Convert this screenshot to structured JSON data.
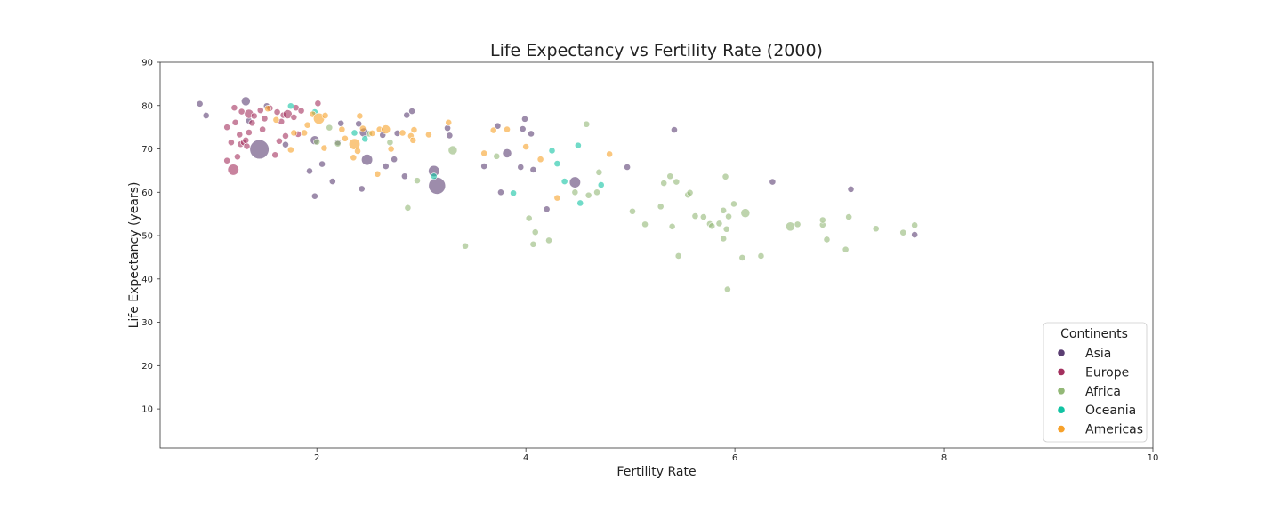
{
  "chart_data": {
    "type": "scatter",
    "title": "Life Expectancy vs Fertility Rate (2000)",
    "xlabel": "Fertility Rate",
    "ylabel": "Life Expectancy (years)",
    "xlim": [
      0.5,
      10
    ],
    "ylim": [
      1,
      90
    ],
    "xticks": [
      2,
      4,
      6,
      8,
      10
    ],
    "yticks": [
      10,
      20,
      30,
      40,
      50,
      60,
      70,
      80,
      90
    ],
    "grid": false,
    "legend": {
      "title": "Continents",
      "position": "bottom-right",
      "entries": [
        "Asia",
        "Europe",
        "Africa",
        "Oceania",
        "Americas"
      ]
    },
    "colors": {
      "Asia": "#5b3f73",
      "Europe": "#a3305e",
      "Africa": "#93b877",
      "Oceania": "#12c3a3",
      "Americas": "#f7a12a"
    },
    "series": [
      {
        "name": "Asia",
        "points": [
          {
            "x": 0.88,
            "y": 80.4,
            "s": 1
          },
          {
            "x": 0.94,
            "y": 77.7,
            "s": 1
          },
          {
            "x": 1.32,
            "y": 81.0,
            "s": 2
          },
          {
            "x": 1.35,
            "y": 76.5,
            "s": 1
          },
          {
            "x": 1.45,
            "y": 69.9,
            "s": 9
          },
          {
            "x": 1.52,
            "y": 79.9,
            "s": 1
          },
          {
            "x": 1.7,
            "y": 71.0,
            "s": 1
          },
          {
            "x": 1.93,
            "y": 64.9,
            "s": 1
          },
          {
            "x": 1.98,
            "y": 59.1,
            "s": 1
          },
          {
            "x": 1.98,
            "y": 72.0,
            "s": 2
          },
          {
            "x": 2.05,
            "y": 66.5,
            "s": 1
          },
          {
            "x": 2.15,
            "y": 62.5,
            "s": 1
          },
          {
            "x": 2.2,
            "y": 71.5,
            "s": 1
          },
          {
            "x": 2.23,
            "y": 75.9,
            "s": 1
          },
          {
            "x": 2.4,
            "y": 75.8,
            "s": 1
          },
          {
            "x": 2.43,
            "y": 60.8,
            "s": 1
          },
          {
            "x": 2.45,
            "y": 73.8,
            "s": 2
          },
          {
            "x": 2.48,
            "y": 67.5,
            "s": 3
          },
          {
            "x": 2.63,
            "y": 73.2,
            "s": 1
          },
          {
            "x": 2.66,
            "y": 66.0,
            "s": 1
          },
          {
            "x": 2.74,
            "y": 67.6,
            "s": 1
          },
          {
            "x": 2.77,
            "y": 73.6,
            "s": 1
          },
          {
            "x": 2.84,
            "y": 63.7,
            "s": 1
          },
          {
            "x": 2.86,
            "y": 77.8,
            "s": 1
          },
          {
            "x": 2.91,
            "y": 78.7,
            "s": 1
          },
          {
            "x": 3.12,
            "y": 64.9,
            "s": 3
          },
          {
            "x": 3.15,
            "y": 61.5,
            "s": 7
          },
          {
            "x": 3.25,
            "y": 74.8,
            "s": 1
          },
          {
            "x": 3.27,
            "y": 73.1,
            "s": 1
          },
          {
            "x": 3.6,
            "y": 66.0,
            "s": 1
          },
          {
            "x": 3.73,
            "y": 75.3,
            "s": 1
          },
          {
            "x": 3.76,
            "y": 60.0,
            "s": 1
          },
          {
            "x": 3.82,
            "y": 69.0,
            "s": 2
          },
          {
            "x": 3.95,
            "y": 65.8,
            "s": 1
          },
          {
            "x": 3.97,
            "y": 74.6,
            "s": 1
          },
          {
            "x": 3.99,
            "y": 76.9,
            "s": 1
          },
          {
            "x": 4.05,
            "y": 73.5,
            "s": 1
          },
          {
            "x": 4.07,
            "y": 65.2,
            "s": 1
          },
          {
            "x": 4.2,
            "y": 56.1,
            "s": 1
          },
          {
            "x": 4.47,
            "y": 62.3,
            "s": 3
          },
          {
            "x": 4.97,
            "y": 65.8,
            "s": 1
          },
          {
            "x": 5.42,
            "y": 74.4,
            "s": 1
          },
          {
            "x": 6.36,
            "y": 62.4,
            "s": 1
          },
          {
            "x": 7.11,
            "y": 60.7,
            "s": 1
          },
          {
            "x": 7.72,
            "y": 50.2,
            "s": 1
          }
        ]
      },
      {
        "name": "Europe",
        "points": [
          {
            "x": 1.14,
            "y": 67.3,
            "s": 1
          },
          {
            "x": 1.14,
            "y": 75.0,
            "s": 1
          },
          {
            "x": 1.18,
            "y": 71.5,
            "s": 1
          },
          {
            "x": 1.2,
            "y": 65.2,
            "s": 3
          },
          {
            "x": 1.21,
            "y": 79.5,
            "s": 1
          },
          {
            "x": 1.22,
            "y": 76.1,
            "s": 1
          },
          {
            "x": 1.24,
            "y": 68.2,
            "s": 1
          },
          {
            "x": 1.26,
            "y": 73.3,
            "s": 1
          },
          {
            "x": 1.27,
            "y": 71.1,
            "s": 1
          },
          {
            "x": 1.28,
            "y": 78.6,
            "s": 1
          },
          {
            "x": 1.3,
            "y": 71.5,
            "s": 1
          },
          {
            "x": 1.32,
            "y": 72.0,
            "s": 1
          },
          {
            "x": 1.33,
            "y": 70.6,
            "s": 1
          },
          {
            "x": 1.35,
            "y": 73.8,
            "s": 1
          },
          {
            "x": 1.35,
            "y": 78.1,
            "s": 2
          },
          {
            "x": 1.38,
            "y": 76.0,
            "s": 1
          },
          {
            "x": 1.4,
            "y": 77.6,
            "s": 1
          },
          {
            "x": 1.46,
            "y": 78.9,
            "s": 1
          },
          {
            "x": 1.48,
            "y": 74.5,
            "s": 1
          },
          {
            "x": 1.5,
            "y": 77.0,
            "s": 1
          },
          {
            "x": 1.55,
            "y": 79.4,
            "s": 1
          },
          {
            "x": 1.6,
            "y": 68.6,
            "s": 1
          },
          {
            "x": 1.62,
            "y": 78.5,
            "s": 1
          },
          {
            "x": 1.64,
            "y": 71.8,
            "s": 1
          },
          {
            "x": 1.66,
            "y": 76.3,
            "s": 1
          },
          {
            "x": 1.68,
            "y": 77.8,
            "s": 1
          },
          {
            "x": 1.7,
            "y": 73.0,
            "s": 1
          },
          {
            "x": 1.72,
            "y": 78.0,
            "s": 2
          },
          {
            "x": 1.78,
            "y": 77.3,
            "s": 1
          },
          {
            "x": 1.8,
            "y": 79.5,
            "s": 1
          },
          {
            "x": 1.82,
            "y": 73.4,
            "s": 1
          },
          {
            "x": 1.85,
            "y": 78.8,
            "s": 1
          },
          {
            "x": 2.01,
            "y": 80.5,
            "s": 1
          }
        ]
      },
      {
        "name": "Africa",
        "points": [
          {
            "x": 2.0,
            "y": 71.6,
            "s": 1
          },
          {
            "x": 2.12,
            "y": 74.9,
            "s": 1
          },
          {
            "x": 2.2,
            "y": 71.2,
            "s": 1
          },
          {
            "x": 2.5,
            "y": 73.5,
            "s": 1
          },
          {
            "x": 2.7,
            "y": 71.5,
            "s": 1
          },
          {
            "x": 2.87,
            "y": 56.4,
            "s": 1
          },
          {
            "x": 2.96,
            "y": 62.7,
            "s": 1
          },
          {
            "x": 3.3,
            "y": 69.7,
            "s": 2
          },
          {
            "x": 3.42,
            "y": 47.6,
            "s": 1
          },
          {
            "x": 3.72,
            "y": 68.3,
            "s": 1
          },
          {
            "x": 4.03,
            "y": 54.0,
            "s": 1
          },
          {
            "x": 4.07,
            "y": 48.0,
            "s": 1
          },
          {
            "x": 4.09,
            "y": 50.8,
            "s": 1
          },
          {
            "x": 4.22,
            "y": 48.9,
            "s": 1
          },
          {
            "x": 4.47,
            "y": 60.0,
            "s": 1
          },
          {
            "x": 4.58,
            "y": 75.7,
            "s": 1
          },
          {
            "x": 4.6,
            "y": 59.3,
            "s": 1
          },
          {
            "x": 4.68,
            "y": 60.0,
            "s": 1
          },
          {
            "x": 4.7,
            "y": 64.6,
            "s": 1
          },
          {
            "x": 5.02,
            "y": 55.6,
            "s": 1
          },
          {
            "x": 5.14,
            "y": 52.6,
            "s": 1
          },
          {
            "x": 5.29,
            "y": 56.7,
            "s": 1
          },
          {
            "x": 5.32,
            "y": 62.1,
            "s": 1
          },
          {
            "x": 5.38,
            "y": 63.7,
            "s": 1
          },
          {
            "x": 5.4,
            "y": 52.1,
            "s": 1
          },
          {
            "x": 5.44,
            "y": 62.4,
            "s": 1
          },
          {
            "x": 5.46,
            "y": 45.3,
            "s": 1
          },
          {
            "x": 5.55,
            "y": 59.4,
            "s": 1
          },
          {
            "x": 5.57,
            "y": 59.9,
            "s": 1
          },
          {
            "x": 5.62,
            "y": 54.5,
            "s": 1
          },
          {
            "x": 5.7,
            "y": 54.3,
            "s": 1
          },
          {
            "x": 5.76,
            "y": 52.7,
            "s": 1
          },
          {
            "x": 5.78,
            "y": 52.2,
            "s": 1
          },
          {
            "x": 5.85,
            "y": 52.8,
            "s": 1
          },
          {
            "x": 5.89,
            "y": 55.8,
            "s": 1
          },
          {
            "x": 5.89,
            "y": 49.3,
            "s": 1
          },
          {
            "x": 5.91,
            "y": 63.6,
            "s": 1
          },
          {
            "x": 5.92,
            "y": 51.5,
            "s": 1
          },
          {
            "x": 5.93,
            "y": 37.6,
            "s": 1
          },
          {
            "x": 5.94,
            "y": 54.4,
            "s": 1
          },
          {
            "x": 5.99,
            "y": 57.3,
            "s": 1
          },
          {
            "x": 6.07,
            "y": 44.9,
            "s": 1
          },
          {
            "x": 6.1,
            "y": 55.2,
            "s": 2
          },
          {
            "x": 6.25,
            "y": 45.3,
            "s": 1
          },
          {
            "x": 6.53,
            "y": 52.1,
            "s": 2
          },
          {
            "x": 6.6,
            "y": 52.6,
            "s": 1
          },
          {
            "x": 6.84,
            "y": 52.5,
            "s": 1
          },
          {
            "x": 6.84,
            "y": 53.6,
            "s": 1
          },
          {
            "x": 6.88,
            "y": 49.1,
            "s": 1
          },
          {
            "x": 7.06,
            "y": 46.8,
            "s": 1
          },
          {
            "x": 7.09,
            "y": 54.3,
            "s": 1
          },
          {
            "x": 7.35,
            "y": 51.6,
            "s": 1
          },
          {
            "x": 7.61,
            "y": 50.7,
            "s": 1
          },
          {
            "x": 7.72,
            "y": 52.4,
            "s": 1
          }
        ]
      },
      {
        "name": "Oceania",
        "points": [
          {
            "x": 1.75,
            "y": 79.9,
            "s": 1
          },
          {
            "x": 1.98,
            "y": 78.5,
            "s": 1
          },
          {
            "x": 2.36,
            "y": 73.7,
            "s": 1
          },
          {
            "x": 2.46,
            "y": 72.3,
            "s": 1
          },
          {
            "x": 3.12,
            "y": 63.7,
            "s": 1
          },
          {
            "x": 3.88,
            "y": 59.8,
            "s": 1
          },
          {
            "x": 4.25,
            "y": 69.6,
            "s": 1
          },
          {
            "x": 4.3,
            "y": 66.6,
            "s": 1
          },
          {
            "x": 4.37,
            "y": 62.5,
            "s": 1
          },
          {
            "x": 4.5,
            "y": 70.8,
            "s": 1
          },
          {
            "x": 4.52,
            "y": 57.5,
            "s": 1
          },
          {
            "x": 4.72,
            "y": 61.7,
            "s": 1
          }
        ]
      },
      {
        "name": "Americas",
        "points": [
          {
            "x": 1.53,
            "y": 79.3,
            "s": 1
          },
          {
            "x": 1.61,
            "y": 76.7,
            "s": 1
          },
          {
            "x": 1.75,
            "y": 69.8,
            "s": 1
          },
          {
            "x": 1.78,
            "y": 73.7,
            "s": 1
          },
          {
            "x": 1.88,
            "y": 73.7,
            "s": 1
          },
          {
            "x": 1.91,
            "y": 75.5,
            "s": 1
          },
          {
            "x": 1.96,
            "y": 78.0,
            "s": 1
          },
          {
            "x": 2.02,
            "y": 77.0,
            "s": 3
          },
          {
            "x": 2.07,
            "y": 70.2,
            "s": 1
          },
          {
            "x": 2.08,
            "y": 77.7,
            "s": 1
          },
          {
            "x": 2.24,
            "y": 74.5,
            "s": 1
          },
          {
            "x": 2.27,
            "y": 72.4,
            "s": 1
          },
          {
            "x": 2.35,
            "y": 68.0,
            "s": 1
          },
          {
            "x": 2.36,
            "y": 71.1,
            "s": 3
          },
          {
            "x": 2.39,
            "y": 69.5,
            "s": 1
          },
          {
            "x": 2.41,
            "y": 77.6,
            "s": 1
          },
          {
            "x": 2.44,
            "y": 74.7,
            "s": 1
          },
          {
            "x": 2.53,
            "y": 73.6,
            "s": 1
          },
          {
            "x": 2.58,
            "y": 64.2,
            "s": 1
          },
          {
            "x": 2.6,
            "y": 74.5,
            "s": 1
          },
          {
            "x": 2.66,
            "y": 74.5,
            "s": 2
          },
          {
            "x": 2.71,
            "y": 70.0,
            "s": 1
          },
          {
            "x": 2.82,
            "y": 73.7,
            "s": 1
          },
          {
            "x": 2.9,
            "y": 73.0,
            "s": 1
          },
          {
            "x": 2.92,
            "y": 72.0,
            "s": 1
          },
          {
            "x": 2.93,
            "y": 74.4,
            "s": 1
          },
          {
            "x": 3.07,
            "y": 73.3,
            "s": 1
          },
          {
            "x": 3.26,
            "y": 76.1,
            "s": 1
          },
          {
            "x": 3.6,
            "y": 69.0,
            "s": 1
          },
          {
            "x": 3.69,
            "y": 74.3,
            "s": 1
          },
          {
            "x": 3.82,
            "y": 74.5,
            "s": 1
          },
          {
            "x": 4.0,
            "y": 70.5,
            "s": 1
          },
          {
            "x": 4.14,
            "y": 67.6,
            "s": 1
          },
          {
            "x": 4.3,
            "y": 58.7,
            "s": 1
          },
          {
            "x": 4.8,
            "y": 68.8,
            "s": 1
          }
        ]
      }
    ]
  }
}
